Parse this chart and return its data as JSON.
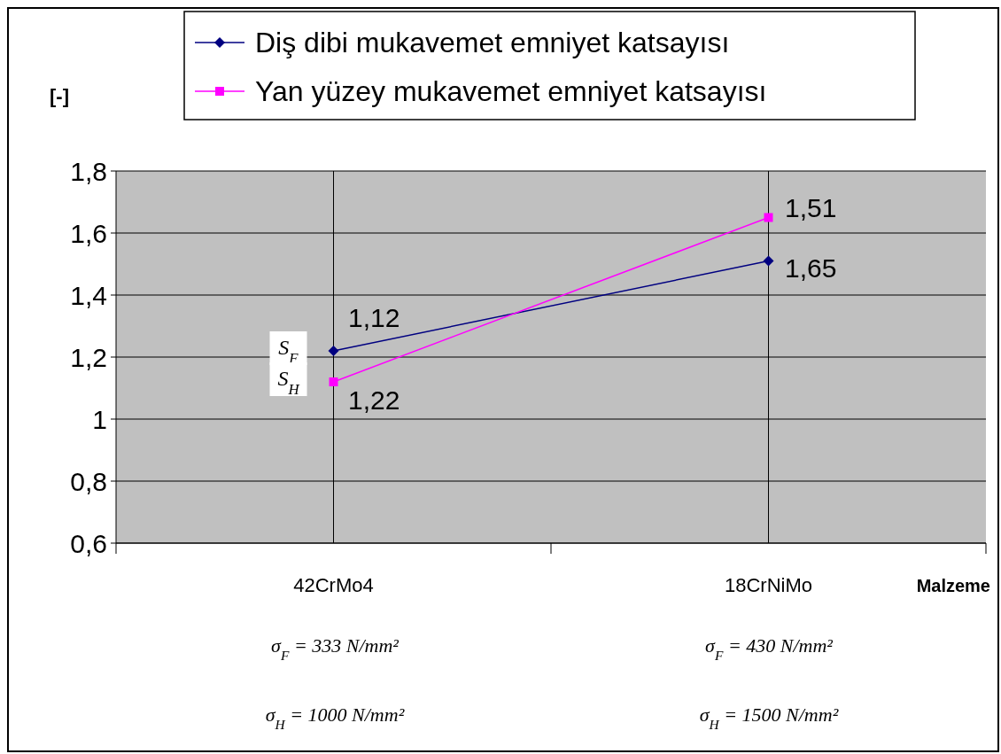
{
  "chart_data": {
    "type": "line",
    "xlabel": "Malzeme",
    "ylabel": "[-]",
    "categories": [
      "42CrMo4",
      "18CrNiMo"
    ],
    "series": [
      {
        "name": "Diş dibi mukavemet emniyet katsayısı",
        "color": "#000080",
        "values": [
          1.22,
          1.51
        ],
        "marker": "diamond"
      },
      {
        "name": "Yan yüzey mukavemet emniyet katsayısı",
        "color": "#ff00ff",
        "values": [
          1.12,
          1.65
        ],
        "marker": "square"
      }
    ],
    "ylim": [
      0.6,
      1.8
    ],
    "yticks": [
      {
        "value": 0.6,
        "label": "0,6"
      },
      {
        "value": 0.8,
        "label": "0,8"
      },
      {
        "value": 1,
        "label": "1"
      },
      {
        "value": 1.2,
        "label": "1,2"
      },
      {
        "value": 1.4,
        "label": "1,4"
      },
      {
        "value": 1.6,
        "label": "1,6"
      },
      {
        "value": 1.8,
        "label": "1,8"
      }
    ],
    "grid": true,
    "legend": "top",
    "annotations": [
      {
        "text": "S$_{F}$",
        "x": "42CrMo4",
        "y": 1.22
      },
      {
        "text": "S$_{H}$",
        "x": "42CrMo4",
        "y": 1.12
      },
      "1,12",
      "1,22",
      "1,51",
      "1,65",
      "σ$_{F}$ = 333 N/mm²",
      "σ$_{H}$ = 1000 N/mm²",
      "σ$_{F}$ = 430 N/mm²",
      "σ$_{H}$ = 1500 N/mm²"
    ]
  }
}
